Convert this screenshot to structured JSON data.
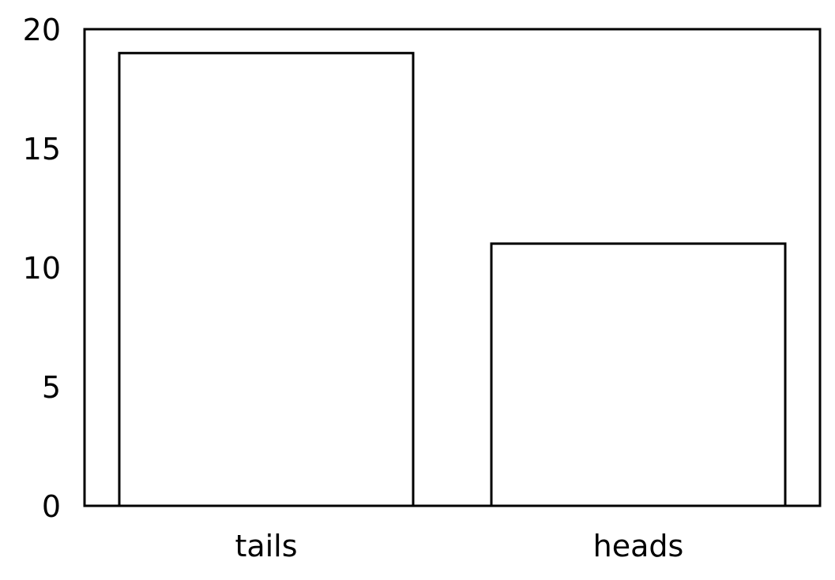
{
  "chart_data": {
    "type": "bar",
    "categories": [
      "tails",
      "heads"
    ],
    "values": [
      19,
      11
    ],
    "title": "",
    "xlabel": "",
    "ylabel": "",
    "ylim": [
      0,
      20
    ],
    "yticks": [
      "0",
      "5",
      "10",
      "15",
      "20"
    ],
    "grid": false,
    "legend": "none",
    "bar_fill": "#ffffff",
    "bar_edge": "#000000"
  }
}
